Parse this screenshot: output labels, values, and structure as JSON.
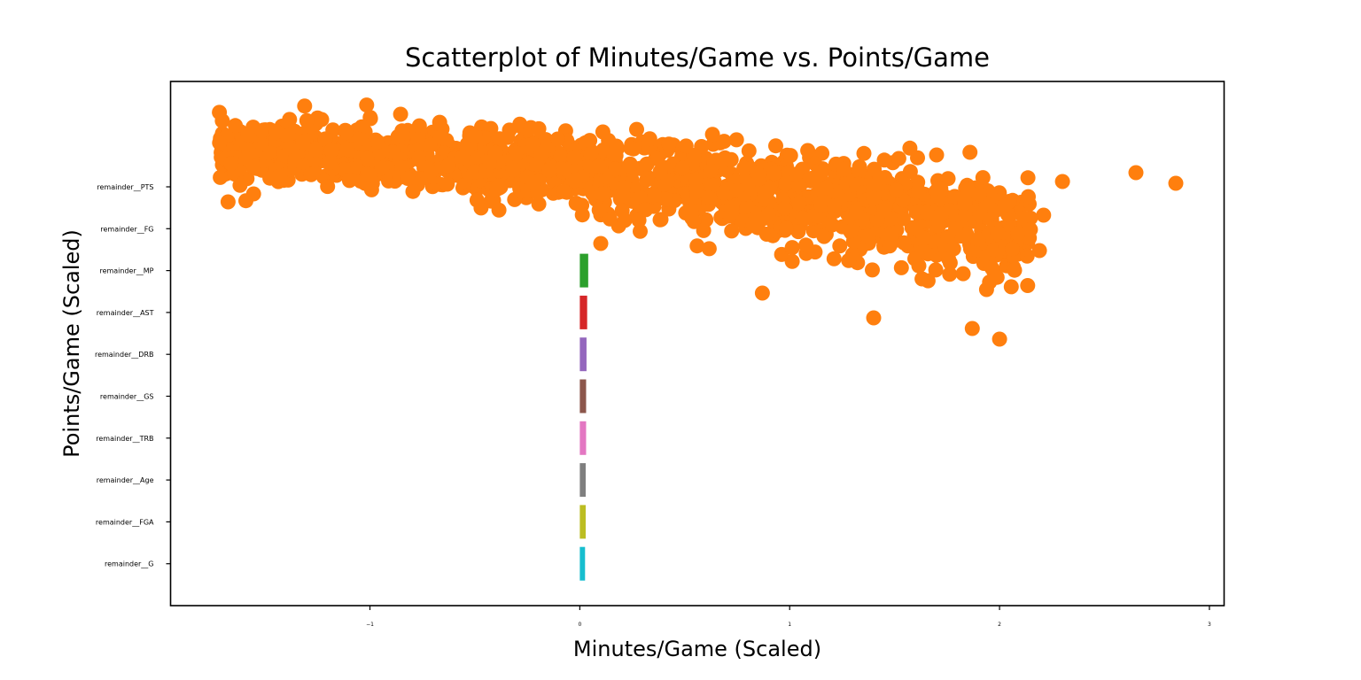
{
  "chart_data": {
    "type": "scatter",
    "title": "Scatterplot of Minutes/Game vs. Points/Game",
    "xlabel": "Minutes/Game (Scaled)",
    "ylabel": "Points/Game (Scaled)",
    "xlim": [
      -1.95,
      3.07
    ],
    "x_ticks": [
      -1,
      0,
      1,
      2,
      3
    ],
    "y_ticks": [
      "remainder__PTS",
      "remainder__FG",
      "remainder__MP",
      "remainder__AST",
      "remainder__DRB",
      "remainder__GS",
      "remainder__TRB",
      "remainder__Age",
      "remainder__FGA",
      "remainder__G"
    ],
    "grid": false,
    "legend": "none",
    "scatter_color": "#ff7f0e",
    "bars": {
      "type": "barh",
      "categories": [
        "remainder__MP",
        "remainder__AST",
        "remainder__DRB",
        "remainder__GS",
        "remainder__TRB",
        "remainder__Age",
        "remainder__FGA",
        "remainder__G"
      ],
      "values": [
        0.04,
        0.035,
        0.032,
        0.03,
        0.03,
        0.028,
        0.028,
        0.025
      ],
      "colors": [
        "#2ca02c",
        "#d62728",
        "#9467bd",
        "#8c564b",
        "#e377c2",
        "#7f7f7f",
        "#bcbd22",
        "#17becf"
      ]
    },
    "scatter_band": {
      "x_range": [
        -1.72,
        2.15
      ],
      "center_at_x_min": 1.0,
      "center_at_x_max": -1.3,
      "spread": 0.9
    },
    "scatter_outliers": [
      {
        "x": 2.84,
        "y": 0.1
      },
      {
        "x": 2.65,
        "y": 0.4
      },
      {
        "x": 2.3,
        "y": 0.15
      },
      {
        "x": 2.21,
        "y": -0.8
      },
      {
        "x": 2.19,
        "y": -1.8
      },
      {
        "x": 2.0,
        "y": -4.3
      },
      {
        "x": 1.87,
        "y": -4.0
      },
      {
        "x": 1.4,
        "y": -3.7
      },
      {
        "x": 0.87,
        "y": -3.0
      },
      {
        "x": 0.1,
        "y": -1.6
      },
      {
        "x": 1.7,
        "y": 0.9
      },
      {
        "x": 1.52,
        "y": 0.8
      },
      {
        "x": -1.23,
        "y": 1.9
      }
    ]
  }
}
